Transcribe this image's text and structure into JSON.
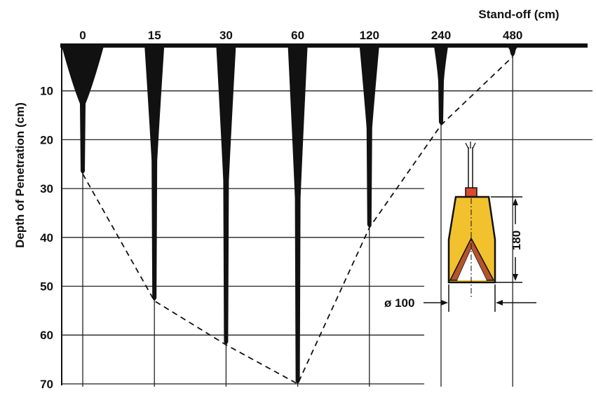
{
  "chart_data": {
    "type": "bar",
    "xlabel": "Stand-off (cm)",
    "ylabel": "Depth of Penetration (cm)",
    "categories": [
      "0",
      "15",
      "30",
      "60",
      "120",
      "240",
      "480"
    ],
    "values": [
      27,
      53,
      62,
      70,
      38,
      17,
      3
    ],
    "y_ticks": [
      10,
      20,
      30,
      40,
      50,
      60,
      70
    ],
    "ylim": [
      0,
      70
    ],
    "y_inverted": true,
    "x_axis_position": "top",
    "grid": true,
    "trend_line": "dashed",
    "colors": {
      "jet": "#111111",
      "charge_fill": "#f2c12e",
      "liner": "#b5542c",
      "detonator": "#d9492b"
    }
  },
  "charge_diagram": {
    "height_label": "180",
    "diameter_label": "ø 100"
  }
}
